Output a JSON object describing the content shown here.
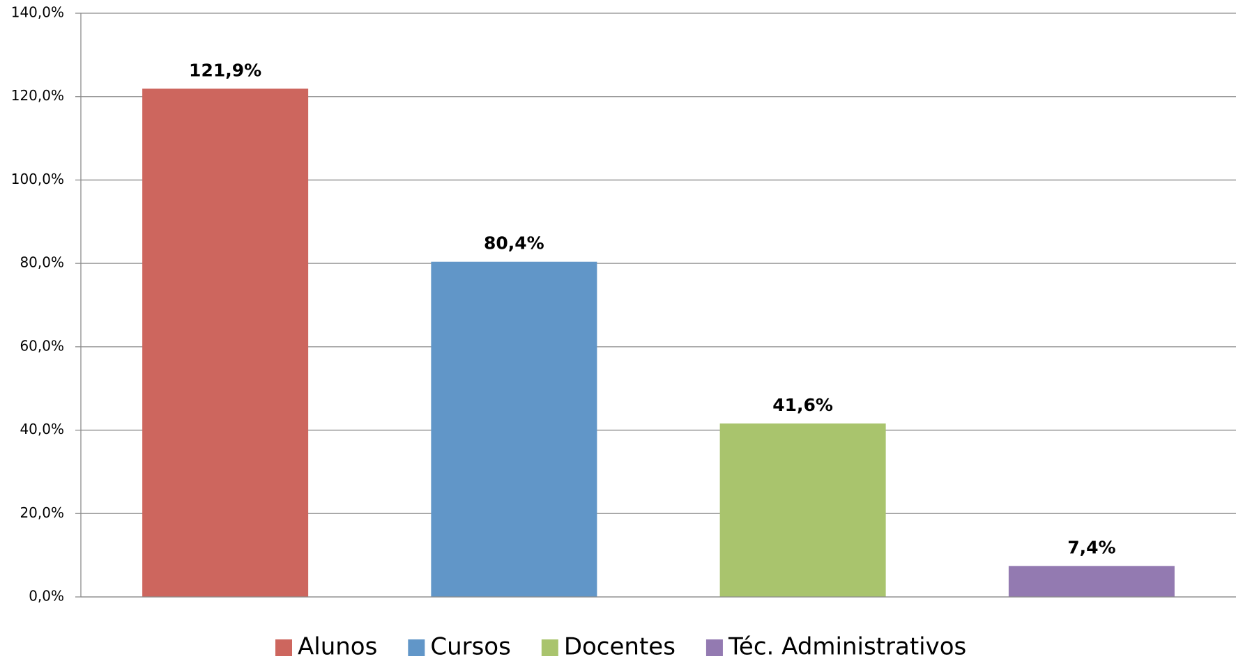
{
  "chart_data": {
    "type": "bar",
    "categories": [
      "Alunos",
      "Cursos",
      "Docentes",
      "Téc. Administrativos"
    ],
    "values": [
      121.9,
      80.4,
      41.6,
      7.4
    ],
    "value_labels": [
      "121,9%",
      "80,4%",
      "41,6%",
      "7,4%"
    ],
    "colors": [
      "#cd665e",
      "#6196c8",
      "#a9c46d",
      "#937ab1"
    ],
    "ylim": [
      0,
      140
    ],
    "yticks": [
      {
        "value": 0,
        "label": "0,0%"
      },
      {
        "value": 20,
        "label": "20,0%"
      },
      {
        "value": 40,
        "label": "40,0%"
      },
      {
        "value": 60,
        "label": "60,0%"
      },
      {
        "value": 80,
        "label": "80,0%"
      },
      {
        "value": 100,
        "label": "100,0%"
      },
      {
        "value": 120,
        "label": "120,0%"
      },
      {
        "value": 140,
        "label": "140,0%"
      }
    ],
    "grid": true,
    "legend": "bottom"
  }
}
